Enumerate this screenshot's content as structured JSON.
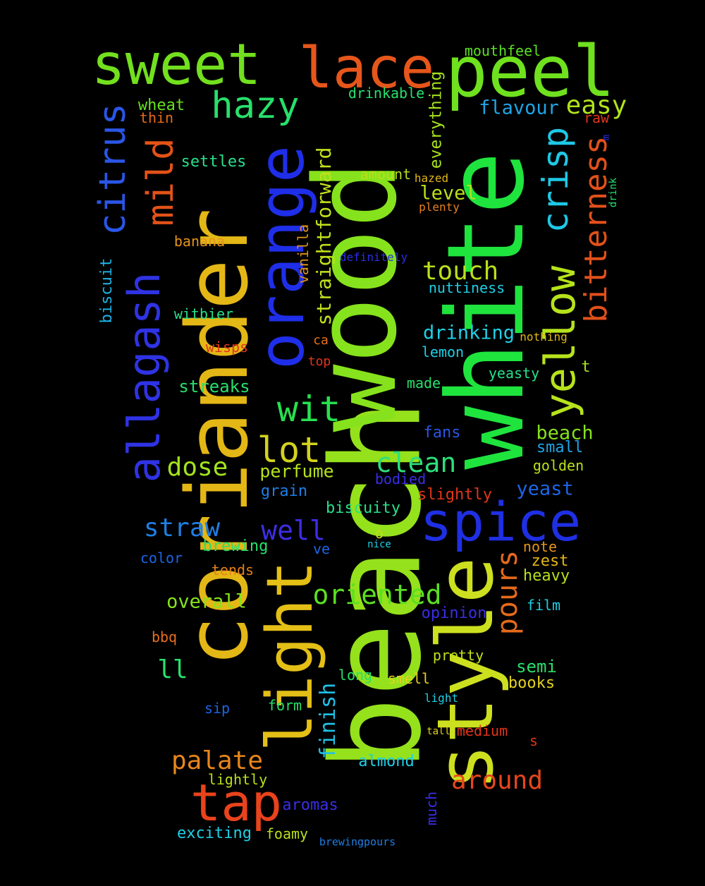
{
  "cloud": {
    "words": [
      {
        "text": "beach",
        "color": "#95e11c",
        "size": 175,
        "vertical": true
      },
      {
        "text": "wood",
        "color": "#86e21c",
        "size": 160,
        "vertical": true
      },
      {
        "text": "white",
        "color": "#1fe43e",
        "size": 150,
        "vertical": true
      },
      {
        "text": "coriander",
        "color": "#e3b716",
        "size": 120,
        "vertical": true
      },
      {
        "text": "style",
        "color": "#cde01f",
        "size": 110,
        "vertical": true
      },
      {
        "text": "light",
        "color": "#e4bf16",
        "size": 90,
        "vertical": true
      },
      {
        "text": "orange",
        "color": "#1f2ee8",
        "size": 88,
        "vertical": true
      },
      {
        "text": "peel",
        "color": "#6fe11e",
        "size": 100,
        "vertical": false
      },
      {
        "text": "sweet",
        "color": "#72e01e",
        "size": 80,
        "vertical": false
      },
      {
        "text": "lace",
        "color": "#e6561b",
        "size": 80,
        "vertical": false
      },
      {
        "text": "spice",
        "color": "#1f2fe3",
        "size": 76,
        "vertical": false
      },
      {
        "text": "tap",
        "color": "#e8431c",
        "size": 72,
        "vertical": false
      },
      {
        "text": "yellow",
        "color": "#b6e31b",
        "size": 60,
        "vertical": true
      },
      {
        "text": "allagash",
        "color": "#2f33e4",
        "size": 62,
        "vertical": true
      },
      {
        "text": "hazy",
        "color": "#27e06b",
        "size": 52,
        "vertical": false
      },
      {
        "text": "wit",
        "color": "#27e04f",
        "size": 50,
        "vertical": false
      },
      {
        "text": "lot",
        "color": "#d2d21f",
        "size": 50,
        "vertical": false
      },
      {
        "text": "citrus",
        "color": "#2a56e6",
        "size": 52,
        "vertical": true
      },
      {
        "text": "mild",
        "color": "#e35217",
        "size": 52,
        "vertical": true
      },
      {
        "text": "crisp",
        "color": "#1ec8e6",
        "size": 50,
        "vertical": true
      },
      {
        "text": "bitterness",
        "color": "#e1501a",
        "size": 44,
        "vertical": true
      },
      {
        "text": "clean",
        "color": "#2be07c",
        "size": 38,
        "vertical": false
      },
      {
        "text": "oriented",
        "color": "#5be021",
        "size": 38,
        "vertical": false
      },
      {
        "text": "well",
        "color": "#3d2ee6",
        "size": 38,
        "vertical": false
      },
      {
        "text": "straw",
        "color": "#1e7fe4",
        "size": 36,
        "vertical": false
      },
      {
        "text": "dose",
        "color": "#a3e21e",
        "size": 36,
        "vertical": false
      },
      {
        "text": "touch",
        "color": "#b8e01b",
        "size": 36,
        "vertical": false
      },
      {
        "text": "easy",
        "color": "#b1e31b",
        "size": 36,
        "vertical": false
      },
      {
        "text": "pours",
        "color": "#e56a1b",
        "size": 40,
        "vertical": true
      },
      {
        "text": "palate",
        "color": "#e7861c",
        "size": 36,
        "vertical": false
      },
      {
        "text": "around",
        "color": "#e6461c",
        "size": 36,
        "vertical": false
      },
      {
        "text": "finish",
        "color": "#20c0e6",
        "size": 30,
        "vertical": true
      },
      {
        "text": "straightforward",
        "color": "#c0e01b",
        "size": 28,
        "vertical": true
      },
      {
        "text": "ll",
        "color": "#27e06b",
        "size": 36,
        "vertical": false
      },
      {
        "text": "flavour",
        "color": "#1ea5e6",
        "size": 27,
        "vertical": false
      },
      {
        "text": "yeast",
        "color": "#1e65e6",
        "size": 27,
        "vertical": false
      },
      {
        "text": "drinking",
        "color": "#1ed0e6",
        "size": 27,
        "vertical": false
      },
      {
        "text": "overall",
        "color": "#86e21c",
        "size": 27,
        "vertical": false
      },
      {
        "text": "beach",
        "color": "#86e21c",
        "size": 27,
        "vertical": false
      },
      {
        "text": "level",
        "color": "#b8e01b",
        "size": 27,
        "vertical": false
      },
      {
        "text": "perfume",
        "color": "#b6e31b",
        "size": 25,
        "vertical": false
      },
      {
        "text": "everything",
        "color": "#a6e21c",
        "size": 23,
        "vertical": true
      },
      {
        "text": "biscuit",
        "color": "#1eb5e6",
        "size": 22,
        "vertical": true
      },
      {
        "text": "vanilla",
        "color": "#e5941b",
        "size": 20,
        "vertical": true
      },
      {
        "text": "much",
        "color": "#3a2ee6",
        "size": 20,
        "vertical": true
      },
      {
        "text": "drink",
        "color": "#27e06b",
        "size": 14,
        "vertical": true
      },
      {
        "text": "m",
        "color": "#2a2ee6",
        "size": 14,
        "vertical": true
      },
      {
        "text": "mouthfeel",
        "color": "#5be021",
        "size": 20,
        "vertical": false
      },
      {
        "text": "drinkable",
        "color": "#27e06b",
        "size": 20,
        "vertical": false
      },
      {
        "text": "wheat",
        "color": "#66e11d",
        "size": 22,
        "vertical": false
      },
      {
        "text": "thin",
        "color": "#e56a1b",
        "size": 20,
        "vertical": false
      },
      {
        "text": "raw",
        "color": "#e1351a",
        "size": 20,
        "vertical": false
      },
      {
        "text": "settles",
        "color": "#27e08a",
        "size": 22,
        "vertical": false
      },
      {
        "text": "amount",
        "color": "#b8e01b",
        "size": 20,
        "vertical": false
      },
      {
        "text": "hazed",
        "color": "#e3b716",
        "size": 16,
        "vertical": false
      },
      {
        "text": "plenty",
        "color": "#e5801b",
        "size": 16,
        "vertical": false
      },
      {
        "text": "banana",
        "color": "#e5941b",
        "size": 20,
        "vertical": false
      },
      {
        "text": "definitely",
        "color": "#2a2ee6",
        "size": 16,
        "vertical": false
      },
      {
        "text": "nuttiness",
        "color": "#1ed0e6",
        "size": 20,
        "vertical": false
      },
      {
        "text": "witbier",
        "color": "#27e08a",
        "size": 20,
        "vertical": false
      },
      {
        "text": "ca",
        "color": "#e5701b",
        "size": 18,
        "vertical": false
      },
      {
        "text": "nothing",
        "color": "#e3b716",
        "size": 16,
        "vertical": false
      },
      {
        "text": "wisps",
        "color": "#e1351a",
        "size": 20,
        "vertical": false
      },
      {
        "text": "lemon",
        "color": "#1ed0e6",
        "size": 20,
        "vertical": false
      },
      {
        "text": "top",
        "color": "#e1351a",
        "size": 18,
        "vertical": false
      },
      {
        "text": "t",
        "color": "#a6e21c",
        "size": 22,
        "vertical": false
      },
      {
        "text": "yeasty",
        "color": "#27e08a",
        "size": 20,
        "vertical": false
      },
      {
        "text": "streaks",
        "color": "#27e06b",
        "size": 24,
        "vertical": false
      },
      {
        "text": "made",
        "color": "#27e06b",
        "size": 20,
        "vertical": false
      },
      {
        "text": "fans",
        "color": "#2a56e6",
        "size": 22,
        "vertical": false
      },
      {
        "text": "small",
        "color": "#1ea5e6",
        "size": 22,
        "vertical": false
      },
      {
        "text": "golden",
        "color": "#b8e01b",
        "size": 20,
        "vertical": false
      },
      {
        "text": "bodied",
        "color": "#3a2ee6",
        "size": 20,
        "vertical": false
      },
      {
        "text": "grain",
        "color": "#1e7fe4",
        "size": 22,
        "vertical": false
      },
      {
        "text": "slightly",
        "color": "#e1351a",
        "size": 22,
        "vertical": false
      },
      {
        "text": "biscuity",
        "color": "#27e08a",
        "size": 22,
        "vertical": false
      },
      {
        "text": "o",
        "color": "#c0e01b",
        "size": 20,
        "vertical": false
      },
      {
        "text": "brewing",
        "color": "#27e06b",
        "size": 22,
        "vertical": false
      },
      {
        "text": "nice",
        "color": "#1ed0e6",
        "size": 14,
        "vertical": false
      },
      {
        "text": "note",
        "color": "#e5941b",
        "size": 20,
        "vertical": false
      },
      {
        "text": "color",
        "color": "#1e65e6",
        "size": 20,
        "vertical": false
      },
      {
        "text": "ve",
        "color": "#1e65e6",
        "size": 20,
        "vertical": false
      },
      {
        "text": "zest",
        "color": "#e3b716",
        "size": 22,
        "vertical": false
      },
      {
        "text": "tends",
        "color": "#e5801b",
        "size": 20,
        "vertical": false
      },
      {
        "text": "heavy",
        "color": "#b8e01b",
        "size": 22,
        "vertical": false
      },
      {
        "text": "film",
        "color": "#1ed0e6",
        "size": 20,
        "vertical": false
      },
      {
        "text": "opinion",
        "color": "#3a2ee6",
        "size": 22,
        "vertical": false
      },
      {
        "text": "bbq",
        "color": "#e5701b",
        "size": 20,
        "vertical": false
      },
      {
        "text": "pretty",
        "color": "#c0e01b",
        "size": 20,
        "vertical": false
      },
      {
        "text": "semi",
        "color": "#27e06b",
        "size": 24,
        "vertical": false
      },
      {
        "text": "long",
        "color": "#27e06b",
        "size": 20,
        "vertical": false
      },
      {
        "text": "smell",
        "color": "#e3d21f",
        "size": 20,
        "vertical": false
      },
      {
        "text": "books",
        "color": "#e3d21f",
        "size": 22,
        "vertical": false
      },
      {
        "text": "light",
        "color": "#1ed0e6",
        "size": 16,
        "vertical": false
      },
      {
        "text": "sip",
        "color": "#1e65e6",
        "size": 20,
        "vertical": false
      },
      {
        "text": "form",
        "color": "#27e06b",
        "size": 20,
        "vertical": false
      },
      {
        "text": "tall",
        "color": "#e3d21f",
        "size": 14,
        "vertical": false
      },
      {
        "text": "medium",
        "color": "#e1351a",
        "size": 20,
        "vertical": false
      },
      {
        "text": "s",
        "color": "#e1351a",
        "size": 20,
        "vertical": false
      },
      {
        "text": "almond",
        "color": "#1ed0e6",
        "size": 22,
        "vertical": false
      },
      {
        "text": "lightly",
        "color": "#b8e01b",
        "size": 20,
        "vertical": false
      },
      {
        "text": "aromas",
        "color": "#3a2ee6",
        "size": 22,
        "vertical": false
      },
      {
        "text": "exciting",
        "color": "#1ed0e6",
        "size": 22,
        "vertical": false
      },
      {
        "text": "foamy",
        "color": "#b8e01b",
        "size": 20,
        "vertical": false
      },
      {
        "text": "brewingpours",
        "color": "#1e7fe4",
        "size": 15,
        "vertical": false
      }
    ]
  }
}
